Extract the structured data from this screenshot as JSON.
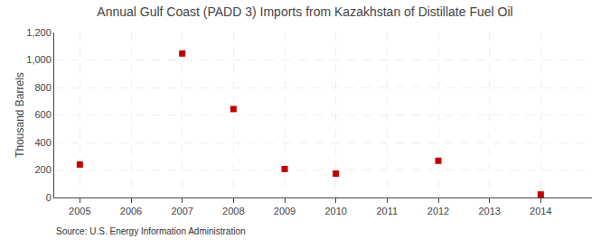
{
  "chart_data": {
    "type": "scatter",
    "title": "Annual Gulf Coast (PADD 3) Imports from Kazakhstan of Distillate Fuel Oil",
    "ylabel": "Thousand Barrels",
    "source": "Source: U.S. Energy Information Administration",
    "x": [
      2005,
      2007,
      2008,
      2009,
      2010,
      2012,
      2014
    ],
    "values": [
      240,
      1047,
      643,
      207,
      174,
      267,
      22
    ],
    "color": "#c00000",
    "marker": "square",
    "grid": true,
    "xlim": [
      2004.5,
      2015.0
    ],
    "xticks": [
      2005,
      2006,
      2007,
      2008,
      2009,
      2010,
      2011,
      2012,
      2013,
      2014
    ],
    "ylim": [
      0,
      1200
    ],
    "yticks": [
      0,
      200,
      400,
      600,
      800,
      {
        "value": 1000,
        "label": "1,000"
      },
      {
        "value": 1200,
        "label": "1,200"
      }
    ]
  }
}
